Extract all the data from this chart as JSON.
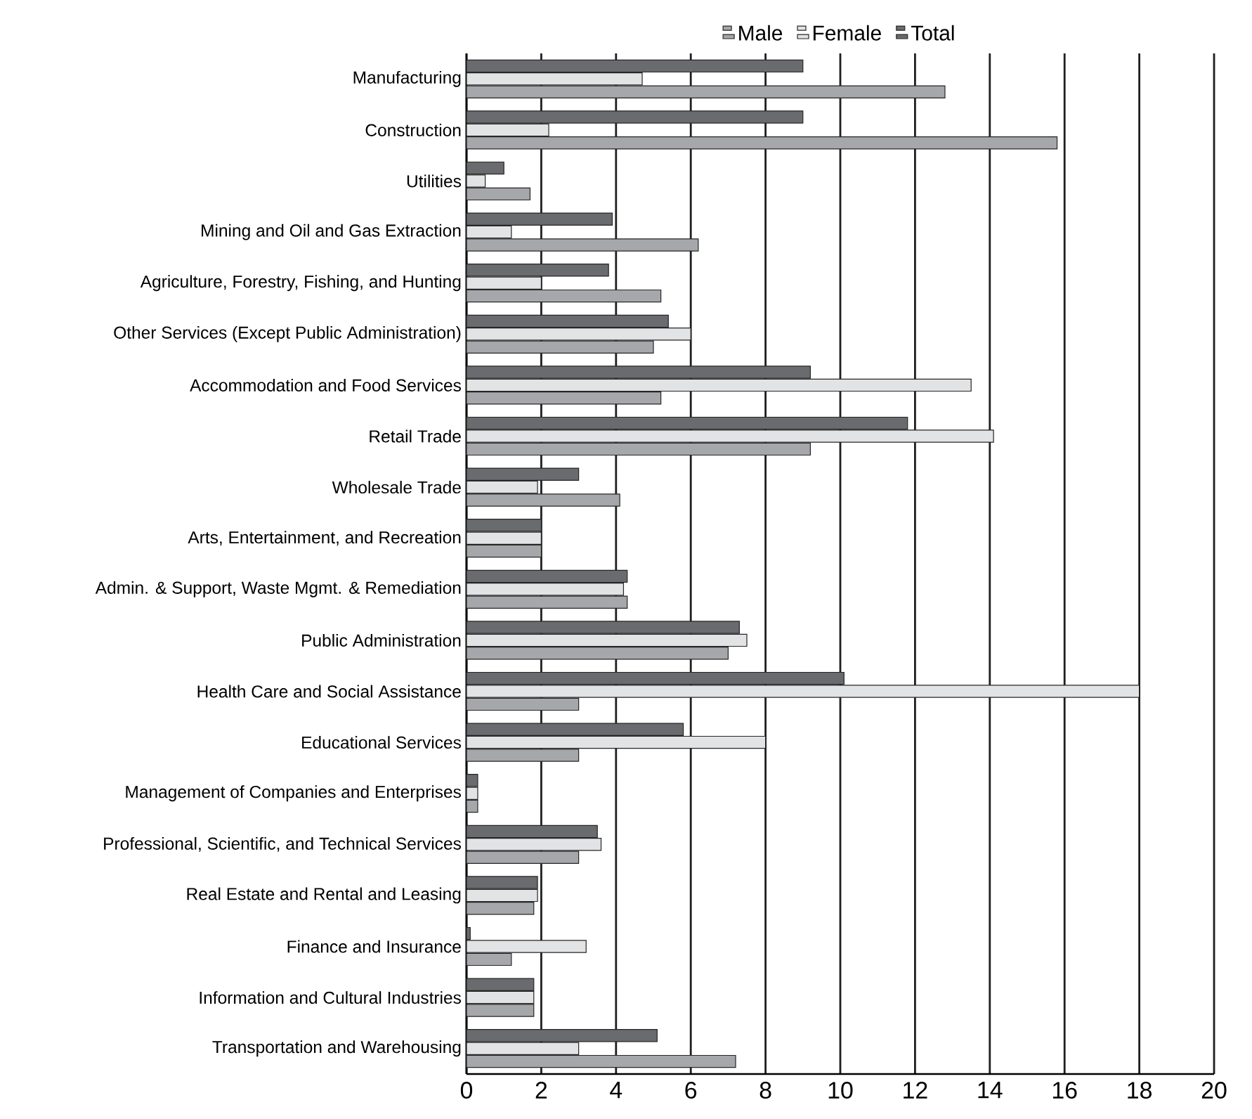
{
  "chart_data": {
    "type": "bar",
    "orientation": "horizontal",
    "categories": [
      "Manufacturing",
      "Construction",
      "Utilities",
      "Mining and Oil and Gas Extraction",
      "Agriculture, Forestry, Fishing, and Hunting",
      "Other Services (Except Public Administration)",
      "Accommodation and Food Services",
      "Retail Trade",
      "Wholesale Trade",
      "Arts, Entertainment, and Recreation",
      "Admin. & Support, Waste Mgmt. & Remediation",
      "Public Administration",
      "Health Care and Social Assistance",
      "Educational Services",
      "Management of Companies and Enterprises",
      "Professional, Scientific, and Technical Services",
      "Real Estate and Rental and Leasing",
      "Finance and Insurance",
      "Information and Cultural Industries",
      "Transportation and Warehousing"
    ],
    "series": [
      {
        "name": "Male",
        "color": "#a6a7aa",
        "values": [
          12.8,
          15.8,
          1.7,
          6.2,
          5.2,
          5.0,
          5.2,
          9.2,
          4.1,
          2.0,
          4.3,
          7.0,
          3.0,
          3.0,
          0.3,
          3.0,
          1.8,
          1.2,
          1.8,
          7.2
        ]
      },
      {
        "name": "Female",
        "color": "#e2e3e4",
        "values": [
          4.7,
          2.2,
          0.5,
          1.2,
          2.0,
          6.0,
          13.5,
          14.1,
          1.9,
          2.0,
          4.2,
          7.5,
          18.0,
          8.0,
          0.3,
          3.6,
          1.9,
          3.2,
          1.8,
          3.0
        ]
      },
      {
        "name": "Total",
        "color": "#6a6b6e",
        "values": [
          9.0,
          9.0,
          1.0,
          3.9,
          3.8,
          5.4,
          9.2,
          11.8,
          3.0,
          2.0,
          4.3,
          7.3,
          10.1,
          5.8,
          0.3,
          3.5,
          1.9,
          0.1,
          1.8,
          5.1
        ]
      }
    ],
    "xlim": [
      0,
      20
    ],
    "xticks": [
      0,
      2,
      4,
      6,
      8,
      10,
      12,
      14,
      16,
      18,
      20
    ],
    "grid": "x",
    "legend": "top"
  }
}
